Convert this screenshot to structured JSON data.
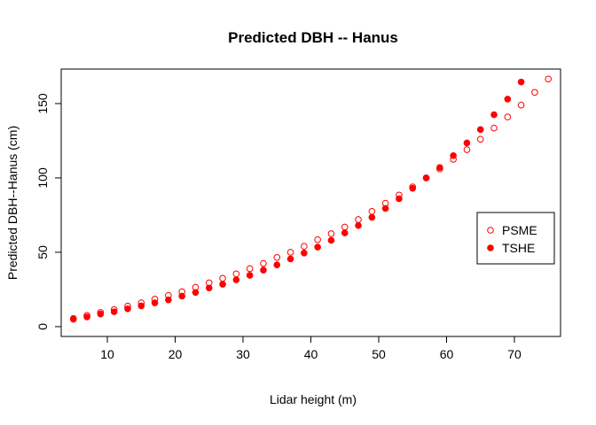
{
  "chart_data": {
    "type": "scatter",
    "title": "Predicted DBH -- Hanus",
    "xlabel": "Lidar height (m)",
    "ylabel": "Predicted DBH--Hanus (cm)",
    "xlim": [
      3.2,
      76.8
    ],
    "ylim": [
      -6.6,
      173.2
    ],
    "xticks": [
      10,
      20,
      30,
      40,
      50,
      60,
      70
    ],
    "yticks": [
      0,
      50,
      100,
      150
    ],
    "grid": false,
    "legend_position": "right",
    "colors": {
      "series": "#ff0000",
      "axes": "#000000"
    },
    "series": [
      {
        "name": "PSME",
        "marker": "open-circle",
        "points": [
          [
            5,
            5.5
          ],
          [
            7,
            7.5
          ],
          [
            9,
            9.5
          ],
          [
            11,
            11.5
          ],
          [
            13,
            13.8
          ],
          [
            15,
            16
          ],
          [
            17,
            18.5
          ],
          [
            19,
            21
          ],
          [
            21,
            23.5
          ],
          [
            23,
            26.5
          ],
          [
            25,
            29.5
          ],
          [
            27,
            32.5
          ],
          [
            29,
            35.5
          ],
          [
            31,
            39
          ],
          [
            33,
            42.5
          ],
          [
            35,
            46.5
          ],
          [
            37,
            50
          ],
          [
            39,
            54
          ],
          [
            41,
            58.5
          ],
          [
            43,
            62.5
          ],
          [
            45,
            67
          ],
          [
            47,
            72
          ],
          [
            49,
            77.5
          ],
          [
            51,
            83
          ],
          [
            53,
            88.5
          ],
          [
            55,
            94
          ],
          [
            57,
            100
          ],
          [
            59,
            106
          ],
          [
            61,
            112.5
          ],
          [
            63,
            119
          ],
          [
            65,
            126
          ],
          [
            67,
            133.5
          ],
          [
            69,
            141
          ],
          [
            71,
            149
          ],
          [
            73,
            157.5
          ],
          [
            75,
            166.5
          ]
        ]
      },
      {
        "name": "TSHE",
        "marker": "filled-circle",
        "points": [
          [
            5,
            5
          ],
          [
            7,
            6.5
          ],
          [
            9,
            8.5
          ],
          [
            11,
            10
          ],
          [
            13,
            12
          ],
          [
            15,
            14
          ],
          [
            17,
            16
          ],
          [
            19,
            18
          ],
          [
            21,
            20.5
          ],
          [
            23,
            23
          ],
          [
            25,
            26
          ],
          [
            27,
            28.5
          ],
          [
            29,
            31.5
          ],
          [
            31,
            34.5
          ],
          [
            33,
            38
          ],
          [
            35,
            41.5
          ],
          [
            37,
            45.5
          ],
          [
            39,
            49.5
          ],
          [
            41,
            53.5
          ],
          [
            43,
            58
          ],
          [
            45,
            63
          ],
          [
            47,
            68
          ],
          [
            49,
            73.5
          ],
          [
            51,
            79.5
          ],
          [
            53,
            86
          ],
          [
            55,
            93
          ],
          [
            57,
            100
          ],
          [
            59,
            107
          ],
          [
            61,
            115
          ],
          [
            63,
            123.5
          ],
          [
            65,
            132.5
          ],
          [
            67,
            142.5
          ],
          [
            69,
            153
          ],
          [
            71,
            164.5
          ]
        ]
      }
    ]
  }
}
